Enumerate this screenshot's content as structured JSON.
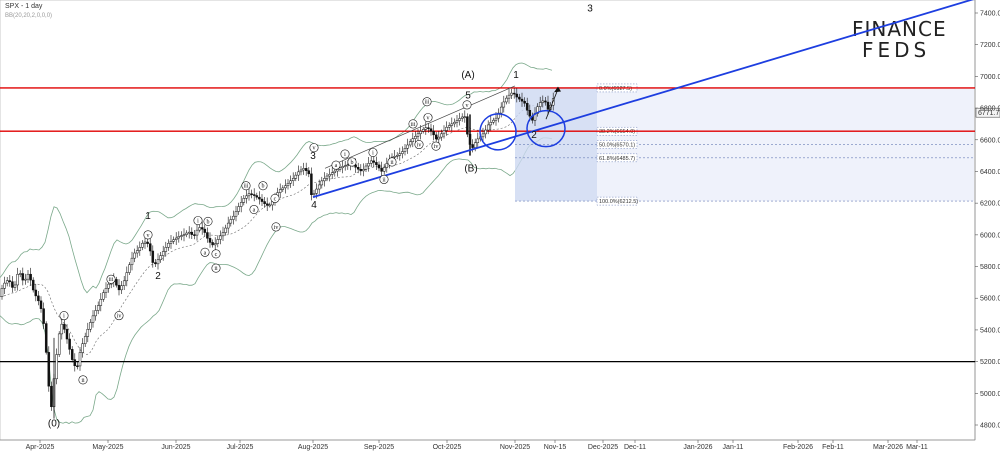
{
  "chart_data": {
    "type": "candlestick",
    "title": "SPX - 1 day",
    "subtitle": "BB(20,20,2,0,0,0)",
    "ylim": [
      4700,
      7500
    ],
    "grid": false,
    "y_ticks": [
      4800,
      5000,
      5200,
      5400,
      5600,
      5800,
      6000,
      6200,
      6400,
      6600,
      6800,
      7000,
      7200,
      7400
    ],
    "x_ticks": [
      "Apr-2025",
      "May-2025",
      "Jun-2025",
      "Jul-2025",
      "Aug-2025",
      "Sep-2025",
      "Oct-2025",
      "Nov-2025",
      "Nov-15",
      "Dec-2025",
      "Dec-11",
      "Jan-2026",
      "Jan-11",
      "Feb-2026",
      "Feb-11",
      "Mar-2026",
      "Mar-11"
    ],
    "price_path": [
      [
        0,
        5610
      ],
      [
        5,
        5690
      ],
      [
        10,
        5720
      ],
      [
        15,
        5650
      ],
      [
        20,
        5780
      ],
      [
        25,
        5700
      ],
      [
        30,
        5760
      ],
      [
        35,
        5640
      ],
      [
        40,
        5580
      ],
      [
        44,
        5500
      ],
      [
        47,
        5300
      ],
      [
        50,
        5050
      ],
      [
        53,
        4900
      ],
      [
        56,
        5150
      ],
      [
        59,
        5300
      ],
      [
        62,
        5450
      ],
      [
        66,
        5400
      ],
      [
        70,
        5300
      ],
      [
        74,
        5200
      ],
      [
        78,
        5150
      ],
      [
        82,
        5280
      ],
      [
        86,
        5350
      ],
      [
        90,
        5420
      ],
      [
        95,
        5500
      ],
      [
        100,
        5560
      ],
      [
        105,
        5640
      ],
      [
        110,
        5690
      ],
      [
        115,
        5720
      ],
      [
        120,
        5650
      ],
      [
        125,
        5700
      ],
      [
        130,
        5800
      ],
      [
        135,
        5880
      ],
      [
        140,
        5910
      ],
      [
        145,
        5960
      ],
      [
        150,
        5940
      ],
      [
        155,
        5800
      ],
      [
        160,
        5850
      ],
      [
        165,
        5900
      ],
      [
        170,
        5950
      ],
      [
        175,
        5970
      ],
      [
        180,
        5990
      ],
      [
        185,
        6000
      ],
      [
        190,
        6020
      ],
      [
        195,
        5990
      ],
      [
        200,
        6050
      ],
      [
        205,
        6030
      ],
      [
        210,
        5960
      ],
      [
        215,
        5930
      ],
      [
        220,
        5980
      ],
      [
        225,
        6020
      ],
      [
        230,
        6080
      ],
      [
        235,
        6120
      ],
      [
        240,
        6180
      ],
      [
        245,
        6230
      ],
      [
        250,
        6260
      ],
      [
        255,
        6250
      ],
      [
        260,
        6230
      ],
      [
        265,
        6200
      ],
      [
        270,
        6180
      ],
      [
        275,
        6220
      ],
      [
        280,
        6280
      ],
      [
        285,
        6300
      ],
      [
        290,
        6330
      ],
      [
        295,
        6360
      ],
      [
        300,
        6400
      ],
      [
        305,
        6420
      ],
      [
        310,
        6390
      ],
      [
        313,
        6238
      ],
      [
        318,
        6290
      ],
      [
        323,
        6340
      ],
      [
        328,
        6370
      ],
      [
        333,
        6390
      ],
      [
        338,
        6410
      ],
      [
        343,
        6430
      ],
      [
        348,
        6440
      ],
      [
        353,
        6450
      ],
      [
        358,
        6420
      ],
      [
        363,
        6400
      ],
      [
        368,
        6440
      ],
      [
        373,
        6470
      ],
      [
        378,
        6440
      ],
      [
        383,
        6400
      ],
      [
        388,
        6450
      ],
      [
        393,
        6490
      ],
      [
        398,
        6500
      ],
      [
        403,
        6520
      ],
      [
        408,
        6560
      ],
      [
        413,
        6600
      ],
      [
        418,
        6630
      ],
      [
        423,
        6660
      ],
      [
        428,
        6680
      ],
      [
        433,
        6650
      ],
      [
        438,
        6600
      ],
      [
        443,
        6640
      ],
      [
        448,
        6680
      ],
      [
        453,
        6700
      ],
      [
        458,
        6720
      ],
      [
        462,
        6740
      ],
      [
        466,
        6750
      ],
      [
        470,
        6580
      ],
      [
        474,
        6550
      ],
      [
        478,
        6600
      ],
      [
        482,
        6620
      ],
      [
        486,
        6650
      ],
      [
        490,
        6700
      ],
      [
        494,
        6720
      ],
      [
        498,
        6740
      ],
      [
        502,
        6800
      ],
      [
        506,
        6850
      ],
      [
        510,
        6880
      ],
      [
        514,
        6900
      ],
      [
        518,
        6870
      ],
      [
        522,
        6850
      ],
      [
        526,
        6830
      ],
      [
        530,
        6760
      ],
      [
        534,
        6720
      ],
      [
        538,
        6800
      ],
      [
        542,
        6840
      ],
      [
        546,
        6850
      ],
      [
        550,
        6780
      ],
      [
        554,
        6860
      ]
    ],
    "horizontal_levels": [
      {
        "price": 6927,
        "color": "#e00000"
      },
      {
        "price": 6654,
        "color": "#e00000"
      },
      {
        "price": 5200,
        "color": "#000000"
      }
    ],
    "current_price_label": "6771.7",
    "fib_levels": [
      {
        "label": "0.0%(6927.5)",
        "price": 6927
      },
      {
        "label": "38.2%(6654.0)",
        "price": 6654
      },
      {
        "label": "50.0%(6570.1)",
        "price": 6570
      },
      {
        "label": "61.8%(6485.7)",
        "price": 6486
      },
      {
        "label": "100.0%(6212.5)",
        "price": 6213
      }
    ],
    "wave_labels": [
      {
        "text": "(0)",
        "x": 54,
        "price": 4790
      },
      {
        "text": "1",
        "x": 148,
        "price": 6100
      },
      {
        "text": "2",
        "x": 158,
        "price": 5720
      },
      {
        "text": "3",
        "x": 313,
        "price": 6480
      },
      {
        "text": "4",
        "x": 314,
        "price": 6170
      },
      {
        "text": "5",
        "x": 468,
        "price": 6860
      },
      {
        "text": "(A)",
        "x": 468,
        "price": 6990
      },
      {
        "text": "(B)",
        "x": 471,
        "price": 6400
      },
      {
        "text": "1",
        "x": 516,
        "price": 6990
      },
      {
        "text": "2",
        "x": 534,
        "price": 6610
      },
      {
        "text": "3",
        "x": 590,
        "price": 7410
      }
    ],
    "wave_circles": [
      {
        "text": "i",
        "x": 64,
        "price": 5490
      },
      {
        "text": "ii",
        "x": 83,
        "price": 5085
      },
      {
        "text": "iii",
        "x": 111,
        "price": 5720
      },
      {
        "text": "iv",
        "x": 119,
        "price": 5490
      },
      {
        "text": "v",
        "x": 148,
        "price": 6000
      },
      {
        "text": "i",
        "x": 198,
        "price": 6090
      },
      {
        "text": "ii",
        "x": 216,
        "price": 5790
      },
      {
        "text": "a",
        "x": 205,
        "price": 5890
      },
      {
        "text": "b",
        "x": 208,
        "price": 6085
      },
      {
        "text": "c",
        "x": 216,
        "price": 5880
      },
      {
        "text": "iii",
        "x": 246,
        "price": 6310
      },
      {
        "text": "a",
        "x": 254,
        "price": 6160
      },
      {
        "text": "b",
        "x": 263,
        "price": 6310
      },
      {
        "text": "c",
        "x": 275,
        "price": 6230
      },
      {
        "text": "iv",
        "x": 276,
        "price": 6050
      },
      {
        "text": "v",
        "x": 314,
        "price": 6550
      },
      {
        "text": "i",
        "x": 345,
        "price": 6510
      },
      {
        "text": "a",
        "x": 336,
        "price": 6440
      },
      {
        "text": "b",
        "x": 352,
        "price": 6460
      },
      {
        "text": "ii",
        "x": 384,
        "price": 6350
      },
      {
        "text": "i",
        "x": 373,
        "price": 6520
      },
      {
        "text": "ii",
        "x": 392,
        "price": 6460
      },
      {
        "text": "iii",
        "x": 413,
        "price": 6700
      },
      {
        "text": "iv",
        "x": 419,
        "price": 6570
      },
      {
        "text": "v",
        "x": 428,
        "price": 6740
      },
      {
        "text": "iii",
        "x": 427,
        "price": 6840
      },
      {
        "text": "iv",
        "x": 436,
        "price": 6560
      },
      {
        "text": "v",
        "x": 467,
        "price": 6820
      }
    ]
  },
  "logo": {
    "line1": "FINANCE",
    "line2": "FEDS"
  }
}
